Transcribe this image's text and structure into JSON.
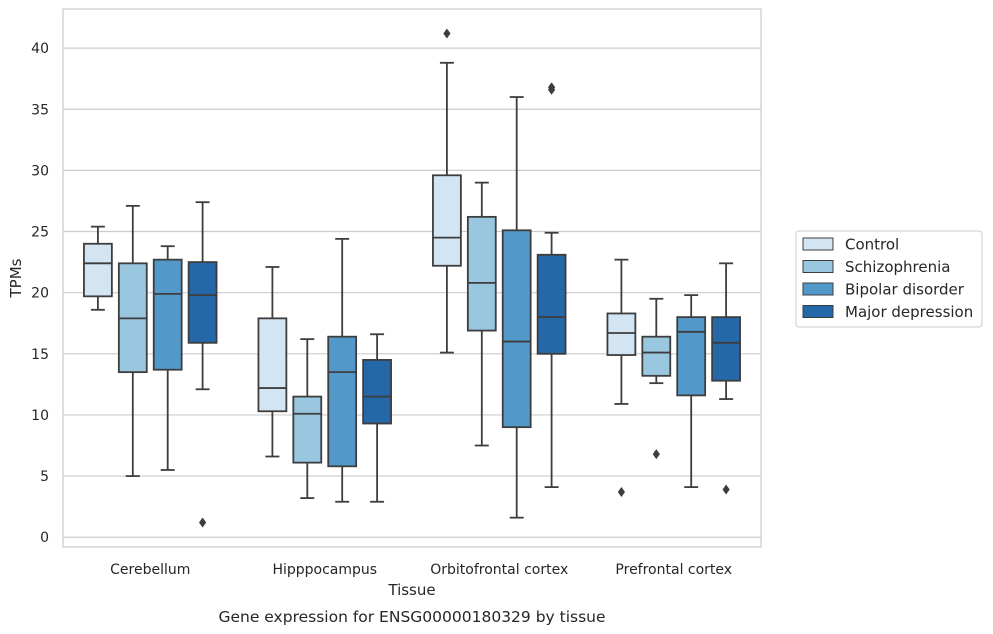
{
  "chart_data": {
    "type": "boxplot",
    "title": "",
    "caption": "Gene expression for ENSG00000180329 by tissue",
    "xlabel": "Tissue",
    "ylabel": "TPMs",
    "ylim": [
      -0.8,
      43.2
    ],
    "yticks": [
      0,
      5,
      10,
      15,
      20,
      25,
      30,
      35,
      40
    ],
    "categories": [
      "Cerebellum",
      "Hipppocampus",
      "Orbitofrontal cortex",
      "Prefrontal cortex"
    ],
    "grid": "horizontal",
    "legend_position": "right",
    "series": [
      {
        "name": "Control",
        "color": "#d3e4f3",
        "boxes": [
          {
            "whislo": 18.6,
            "q1": 19.7,
            "med": 22.4,
            "q3": 24.0,
            "whishi": 25.4,
            "fliers": []
          },
          {
            "whislo": 6.6,
            "q1": 10.3,
            "med": 12.2,
            "q3": 17.9,
            "whishi": 22.1,
            "fliers": []
          },
          {
            "whislo": 15.1,
            "q1": 22.2,
            "med": 24.5,
            "q3": 29.6,
            "whishi": 38.8,
            "fliers": [
              41.2
            ]
          },
          {
            "whislo": 10.9,
            "q1": 14.9,
            "med": 16.7,
            "q3": 18.3,
            "whishi": 22.7,
            "fliers": [
              3.7
            ]
          }
        ]
      },
      {
        "name": "Schizophrenia",
        "color": "#9ac7e0",
        "boxes": [
          {
            "whislo": 5.0,
            "q1": 13.5,
            "med": 17.9,
            "q3": 22.4,
            "whishi": 27.1,
            "fliers": []
          },
          {
            "whislo": 3.2,
            "q1": 6.1,
            "med": 10.1,
            "q3": 11.5,
            "whishi": 16.2,
            "fliers": []
          },
          {
            "whislo": 7.5,
            "q1": 16.9,
            "med": 20.8,
            "q3": 26.2,
            "whishi": 29.0,
            "fliers": []
          },
          {
            "whislo": 12.6,
            "q1": 13.2,
            "med": 15.1,
            "q3": 16.4,
            "whishi": 19.5,
            "fliers": [
              6.8
            ]
          }
        ]
      },
      {
        "name": "Bipolar disorder",
        "color": "#5299c9",
        "boxes": [
          {
            "whislo": 5.5,
            "q1": 13.7,
            "med": 19.9,
            "q3": 22.7,
            "whishi": 23.8,
            "fliers": []
          },
          {
            "whislo": 2.9,
            "q1": 5.8,
            "med": 13.5,
            "q3": 16.4,
            "whishi": 24.4,
            "fliers": []
          },
          {
            "whislo": 1.6,
            "q1": 9.0,
            "med": 16.0,
            "q3": 25.1,
            "whishi": 36.0,
            "fliers": []
          },
          {
            "whislo": 4.1,
            "q1": 11.6,
            "med": 16.8,
            "q3": 18.0,
            "whishi": 19.8,
            "fliers": []
          }
        ]
      },
      {
        "name": "Major depression",
        "color": "#2468aa",
        "boxes": [
          {
            "whislo": 12.1,
            "q1": 15.9,
            "med": 19.8,
            "q3": 22.5,
            "whishi": 27.4,
            "fliers": [
              1.2
            ]
          },
          {
            "whislo": 2.9,
            "q1": 9.3,
            "med": 11.5,
            "q3": 14.5,
            "whishi": 16.6,
            "fliers": []
          },
          {
            "whislo": 4.1,
            "q1": 15.0,
            "med": 18.0,
            "q3": 23.1,
            "whishi": 24.9,
            "fliers": [
              36.6,
              36.8
            ]
          },
          {
            "whislo": 11.3,
            "q1": 12.8,
            "med": 15.9,
            "q3": 18.0,
            "whishi": 22.4,
            "fliers": [
              3.9
            ]
          }
        ]
      }
    ]
  }
}
